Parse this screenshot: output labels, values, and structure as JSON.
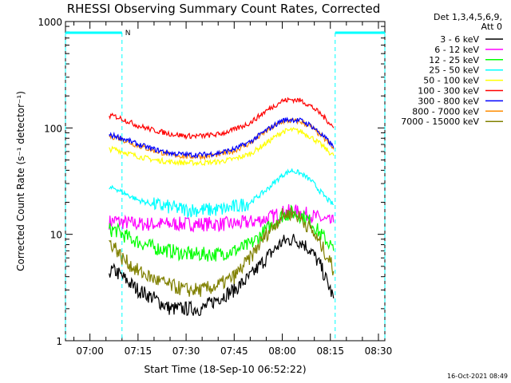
{
  "chart_data": {
    "type": "line",
    "title": "RHESSI Observing Summary Count Rates, Corrected",
    "xlabel": "Start Time (18-Sep-10 06:52:22)",
    "ylabel": "Corrected Count Rate (s⁻¹ detector⁻¹)",
    "xlim": [
      "06:52:22",
      "08:32:00"
    ],
    "ylim": [
      1,
      1000
    ],
    "yscale": "log",
    "x_ticks": [
      "07:00",
      "07:15",
      "07:30",
      "07:45",
      "08:00",
      "08:15",
      "08:30"
    ],
    "y_ticks": [
      "1",
      "10",
      "100",
      "1000"
    ],
    "legend_header": [
      "Det 1,3,4,5,6,9,",
      "Att 0"
    ],
    "legend_placement": "outside-right",
    "x_sample_times": [
      "07:06",
      "07:08",
      "07:10",
      "07:15",
      "07:20",
      "07:25",
      "07:30",
      "07:35",
      "07:40",
      "07:45",
      "07:50",
      "07:55",
      "08:00",
      "08:03",
      "08:06",
      "08:09",
      "08:12",
      "08:15",
      "08:16"
    ],
    "series": [
      {
        "name": "3 - 6 keV",
        "color": "#000000",
        "values": [
          4.5,
          4.5,
          4.0,
          3.0,
          2.5,
          2.0,
          2.0,
          2.0,
          2.5,
          3.0,
          4.0,
          6.0,
          8.5,
          9.0,
          8.5,
          7.0,
          5.0,
          3.0,
          2.5
        ]
      },
      {
        "name": "6 - 12 keV",
        "color": "#ff00ff",
        "values": [
          13,
          13.5,
          13,
          12.5,
          12.5,
          12.5,
          12.5,
          12.5,
          12.5,
          12.5,
          13,
          14,
          16,
          16.5,
          16,
          15,
          14,
          13,
          13
        ]
      },
      {
        "name": "12 - 25 keV",
        "color": "#00ff00",
        "values": [
          11,
          11,
          10,
          8.5,
          7.5,
          7.0,
          6.5,
          6.5,
          6.5,
          7.0,
          8.0,
          11,
          15,
          16,
          15,
          13,
          10,
          8,
          7
        ]
      },
      {
        "name": "25 - 50 keV",
        "color": "#00ffff",
        "values": [
          27,
          27,
          25,
          21,
          19,
          18,
          17,
          17,
          17,
          18,
          20,
          26,
          36,
          40,
          37,
          32,
          25,
          20,
          19
        ]
      },
      {
        "name": "50 - 100 keV",
        "color": "#ffff00",
        "values": [
          63,
          63,
          60,
          54,
          50,
          48,
          47,
          47,
          48,
          51,
          57,
          72,
          92,
          96,
          92,
          82,
          70,
          58,
          55
        ]
      },
      {
        "name": "100 - 300 keV",
        "color": "#ff0000",
        "values": [
          130,
          128,
          122,
          105,
          95,
          88,
          84,
          84,
          87,
          96,
          112,
          145,
          180,
          185,
          180,
          160,
          135,
          110,
          100
        ]
      },
      {
        "name": "300 - 800 keV",
        "color": "#0000ff",
        "values": [
          85,
          84,
          80,
          70,
          63,
          58,
          56,
          56,
          58,
          63,
          74,
          95,
          118,
          120,
          117,
          105,
          88,
          72,
          65
        ]
      },
      {
        "name": "800 - 7000 keV",
        "color": "#ff8c00",
        "values": [
          83,
          82,
          78,
          68,
          61,
          56,
          54,
          54,
          56,
          61,
          72,
          93,
          115,
          117,
          114,
          102,
          85,
          70,
          63
        ]
      },
      {
        "name": "7000 - 15000 keV",
        "color": "#808000",
        "values": [
          8.5,
          7.5,
          6.0,
          4.5,
          3.8,
          3.3,
          3.0,
          3.0,
          3.3,
          4.0,
          6.0,
          10,
          15,
          16,
          14,
          11,
          8,
          5.5,
          4.5
        ]
      }
    ],
    "night_markers": [
      {
        "label": "N",
        "start": "06:52:22",
        "end": "07:10:00"
      },
      {
        "label": "",
        "start": "08:16:30",
        "end": "08:32:00"
      }
    ],
    "colors": {
      "night_marker": "#00ffff",
      "axis": "#000000"
    }
  },
  "timestamp": "16-Oct-2021 08:49"
}
